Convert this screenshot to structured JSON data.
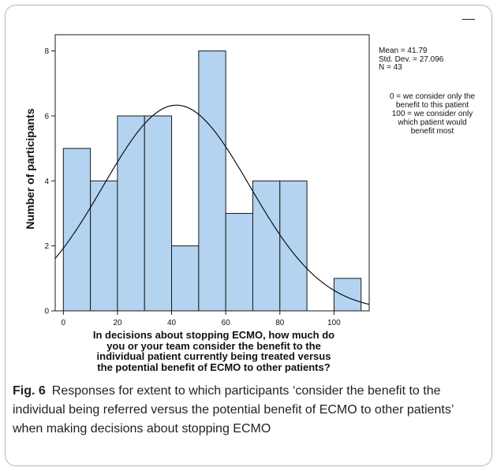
{
  "figure": {
    "caption_label": "Fig. 6",
    "caption_text": "Responses for extent to which participants ‘consider the benefit to the individual being referred versus the potential benefit of ECMO to other patients’ when making decisions about stopping ECMO"
  },
  "stats": {
    "mean": "Mean = 41.79",
    "sd": "Std. Dev. = 27.096",
    "n": "N = 43"
  },
  "note": {
    "line1": "0 = we consider only the",
    "line2": "benefit to this patient",
    "line3": "100 = we consider only",
    "line4": "which patient would",
    "line5": "benefit most"
  },
  "chart_data": {
    "type": "bar",
    "title": "",
    "xlabel_lines": [
      "In decisions about stopping ECMO, how much do",
      "you or your team consider the benefit to the",
      "individual patient currently being treated versus",
      "the potential benefit of ECMO to other patients?"
    ],
    "ylabel": "Number of participants",
    "bins": [
      {
        "start": 0,
        "end": 10,
        "count": 5
      },
      {
        "start": 10,
        "end": 20,
        "count": 4
      },
      {
        "start": 20,
        "end": 30,
        "count": 6
      },
      {
        "start": 30,
        "end": 40,
        "count": 6
      },
      {
        "start": 40,
        "end": 50,
        "count": 2
      },
      {
        "start": 50,
        "end": 60,
        "count": 8
      },
      {
        "start": 60,
        "end": 70,
        "count": 3
      },
      {
        "start": 70,
        "end": 80,
        "count": 4
      },
      {
        "start": 80,
        "end": 90,
        "count": 4
      },
      {
        "start": 90,
        "end": 100,
        "count": 0
      },
      {
        "start": 100,
        "end": 110,
        "count": 1
      }
    ],
    "xticks": [
      0,
      20,
      40,
      60,
      80,
      100
    ],
    "yticks": [
      0,
      2,
      4,
      6,
      8
    ],
    "xlim": [
      -3,
      113
    ],
    "ylim": [
      0,
      8.5
    ],
    "normal_curve": {
      "mean": 41.79,
      "sd": 27.096,
      "n": 43,
      "bin_width": 10
    },
    "colors": {
      "bar_fill": "#b3d3f0",
      "bar_stroke": "#1a1a1a",
      "curve": "#111111"
    }
  }
}
